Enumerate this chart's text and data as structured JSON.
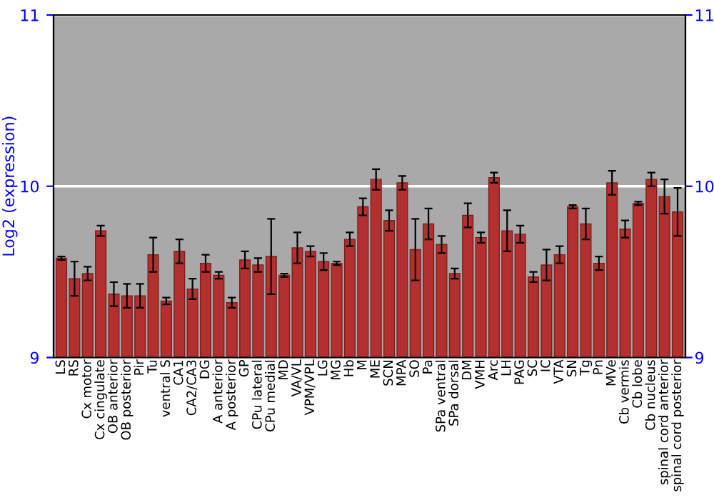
{
  "chart_data": {
    "type": "bar",
    "ylabel": "Log2 (expression)",
    "categories": [
      "LS",
      "RS",
      "Cx motor",
      "Cx cingulate",
      "OB anterior",
      "OB posterior",
      "Pir",
      "Tu",
      "ventral S",
      "CA1",
      "CA2/CA3",
      "DG",
      "A anterior",
      "A posterior",
      "GP",
      "CPu lateral",
      "CPu medial",
      "MD",
      "VA/VL",
      "VPM/VPL",
      "LG",
      "MG",
      "Hb",
      "M",
      "ME",
      "SCN",
      "MPA",
      "SO",
      "Pa",
      "SPa ventral",
      "SPa dorsal",
      "DM",
      "VMH",
      "Arc",
      "LH",
      "PAG",
      "SC",
      "IC",
      "VTA",
      "SN",
      "Tg",
      "Pn",
      "MVe",
      "Cb vermis",
      "Cb lobe",
      "Cb nucleus",
      "spinal cord anterior",
      "spinal cord posterior"
    ],
    "values": [
      9.58,
      9.46,
      9.49,
      9.74,
      9.37,
      9.36,
      9.36,
      9.6,
      9.33,
      9.62,
      9.4,
      9.55,
      9.48,
      9.32,
      9.57,
      9.54,
      9.59,
      9.48,
      9.64,
      9.62,
      9.56,
      9.55,
      9.69,
      9.88,
      10.04,
      9.8,
      10.02,
      9.63,
      9.78,
      9.66,
      9.49,
      9.83,
      9.7,
      10.05,
      9.74,
      9.72,
      9.47,
      9.54,
      9.6,
      9.88,
      9.78,
      9.55,
      10.02,
      9.75,
      9.9,
      10.04,
      9.94,
      9.85
    ],
    "errors": [
      0.01,
      0.1,
      0.04,
      0.03,
      0.07,
      0.07,
      0.07,
      0.1,
      0.02,
      0.07,
      0.06,
      0.05,
      0.02,
      0.03,
      0.05,
      0.04,
      0.22,
      0.01,
      0.09,
      0.03,
      0.05,
      0.01,
      0.04,
      0.05,
      0.06,
      0.06,
      0.04,
      0.18,
      0.09,
      0.05,
      0.03,
      0.07,
      0.03,
      0.03,
      0.12,
      0.05,
      0.03,
      0.09,
      0.05,
      0.01,
      0.09,
      0.04,
      0.07,
      0.05,
      0.01,
      0.04,
      0.1,
      0.14
    ],
    "color": "#b3302e",
    "ylim": [
      9,
      11
    ],
    "yticks": [
      9,
      10,
      11
    ],
    "y2lim": [
      9,
      11
    ],
    "y2ticks": [
      9,
      10,
      11
    ],
    "grid": "y"
  }
}
